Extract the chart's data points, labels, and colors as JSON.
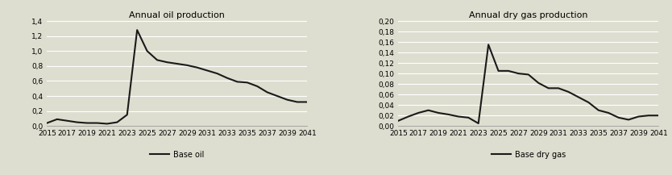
{
  "oil_title": "Annual oil production",
  "gas_title": "Annual dry gas production",
  "oil_legend": "Base oil",
  "gas_legend": "Base dry gas",
  "oil_x": [
    2015,
    2016,
    2017,
    2018,
    2019,
    2020,
    2021,
    2022,
    2023,
    2024,
    2025,
    2026,
    2027,
    2028,
    2029,
    2030,
    2031,
    2032,
    2033,
    2034,
    2035,
    2036,
    2037,
    2038,
    2039,
    2040,
    2041
  ],
  "oil_y": [
    0.04,
    0.09,
    0.07,
    0.05,
    0.04,
    0.04,
    0.03,
    0.05,
    0.15,
    1.28,
    1.0,
    0.88,
    0.85,
    0.83,
    0.81,
    0.78,
    0.74,
    0.7,
    0.64,
    0.59,
    0.58,
    0.53,
    0.45,
    0.4,
    0.35,
    0.32,
    0.32
  ],
  "gas_x": [
    2015,
    2016,
    2017,
    2018,
    2019,
    2020,
    2021,
    2022,
    2023,
    2024,
    2025,
    2026,
    2027,
    2028,
    2029,
    2030,
    2031,
    2032,
    2033,
    2034,
    2035,
    2036,
    2037,
    2038,
    2039,
    2040,
    2041
  ],
  "gas_y": [
    0.01,
    0.018,
    0.025,
    0.03,
    0.025,
    0.022,
    0.018,
    0.016,
    0.005,
    0.155,
    0.105,
    0.105,
    0.1,
    0.098,
    0.082,
    0.072,
    0.072,
    0.065,
    0.055,
    0.045,
    0.03,
    0.025,
    0.016,
    0.012,
    0.018,
    0.02,
    0.02
  ],
  "oil_ylim": [
    0,
    1.4
  ],
  "gas_ylim": [
    0.0,
    0.2
  ],
  "oil_yticks": [
    0.0,
    0.2,
    0.4,
    0.6,
    0.8,
    1.0,
    1.2,
    1.4
  ],
  "gas_yticks": [
    0.0,
    0.02,
    0.04,
    0.06,
    0.08,
    0.1,
    0.12,
    0.14,
    0.16,
    0.18,
    0.2
  ],
  "xticks": [
    2015,
    2017,
    2019,
    2021,
    2023,
    2025,
    2027,
    2029,
    2031,
    2033,
    2035,
    2037,
    2039,
    2041
  ],
  "line_color": "#1a1a1a",
  "line_width": 1.5,
  "bg_color": "#deded0",
  "plot_bg_color": "#deded0",
  "grid_color": "#ffffff",
  "title_fontsize": 8,
  "tick_fontsize": 6.5,
  "legend_fontsize": 7
}
